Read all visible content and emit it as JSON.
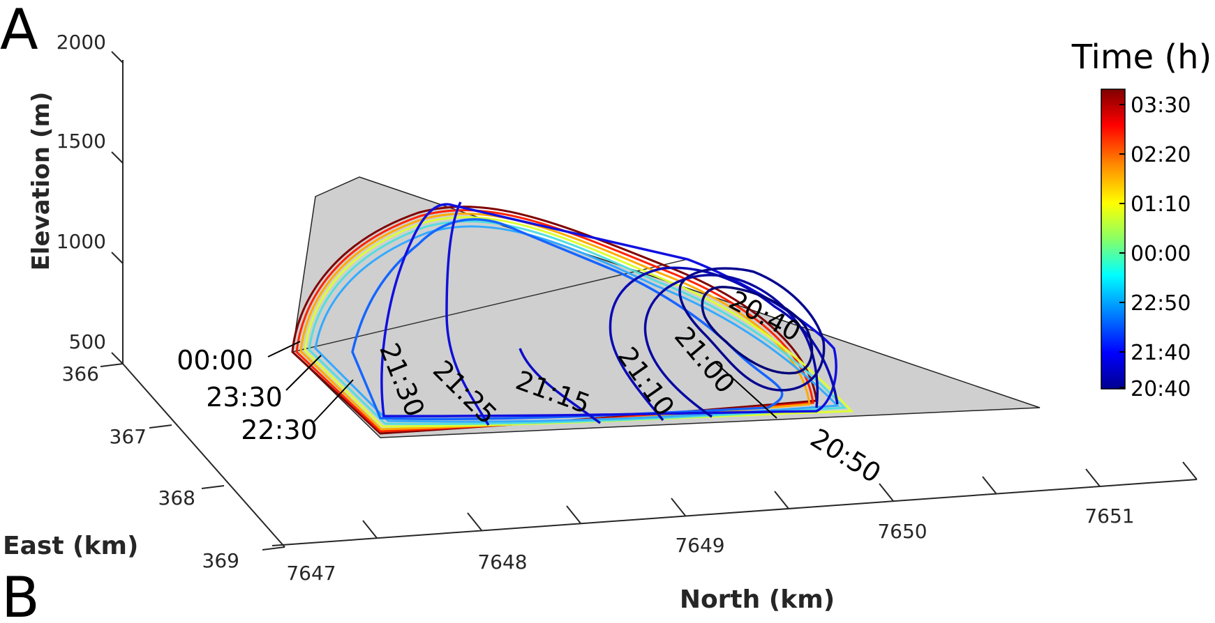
{
  "panels": {
    "top": "A",
    "bottom": "B"
  },
  "chart_data": {
    "type": "line",
    "subtype": "3d-contour-front-positions",
    "axes": {
      "north": {
        "label": "North (km)",
        "ticks": [
          "7647",
          "7648",
          "7649",
          "7650",
          "7651"
        ],
        "range": [
          7647,
          7651.5
        ]
      },
      "east": {
        "label": "East (km)",
        "ticks": [
          "366",
          "367",
          "368",
          "369"
        ],
        "range": [
          366,
          369
        ]
      },
      "elevation": {
        "label": "Elevation (m)",
        "ticks": [
          "500",
          "1000",
          "1500",
          "2000"
        ],
        "range": [
          500,
          2000
        ]
      }
    },
    "colorbar": {
      "title": "Time (h)",
      "ticks": [
        "03:30",
        "02:20",
        "01:10",
        "00:00",
        "22:50",
        "21:40",
        "20:40"
      ],
      "colors": [
        "#7f0000",
        "#ff0000",
        "#ffaa00",
        "#ffff00",
        "#aaff55",
        "#00ffff",
        "#0080ff",
        "#0000ff",
        "#00008f"
      ]
    },
    "surface_color": "#cfcfcf",
    "contour_labels": [
      "20:40",
      "20:50",
      "21:00",
      "21:10",
      "21:15",
      "21:25",
      "21:30",
      "22:30",
      "23:30",
      "00:00"
    ],
    "grid": false,
    "legend": "right"
  }
}
